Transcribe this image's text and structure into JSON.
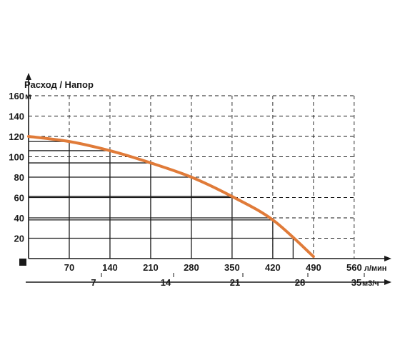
{
  "chart_data": {
    "type": "line",
    "title": "Расход / Напор",
    "y_unit": "м",
    "y_ticks": [
      20,
      40,
      60,
      80,
      100,
      120,
      140,
      160
    ],
    "ylim": [
      0,
      160
    ],
    "x_primary": {
      "unit": "л/мин",
      "ticks": [
        70,
        140,
        210,
        280,
        350,
        420,
        490,
        560
      ],
      "range": [
        0,
        560
      ]
    },
    "x_secondary": {
      "unit": "м3/ч",
      "ticks": [
        7,
        14,
        21,
        28,
        35
      ],
      "range": [
        0,
        33.6
      ]
    },
    "grid": true,
    "series": [
      {
        "color": "#e07b39",
        "x": [
          0,
          70,
          140,
          210,
          280,
          350,
          420,
          490
        ],
        "y": [
          120,
          115,
          106,
          94,
          80,
          61,
          38,
          2
        ]
      }
    ],
    "marker_lines": [
      {
        "x": 70,
        "y": 115
      },
      {
        "x": 140,
        "y": 106
      },
      {
        "x": 210,
        "y": 94
      },
      {
        "x": 280,
        "y": 80
      },
      {
        "x": 350,
        "y": 61
      },
      {
        "x": 420,
        "y": 38
      }
    ],
    "colors": {
      "curve": "#e07b39",
      "axis": "#1a1a1a",
      "grid": "#1a1a1a"
    }
  }
}
